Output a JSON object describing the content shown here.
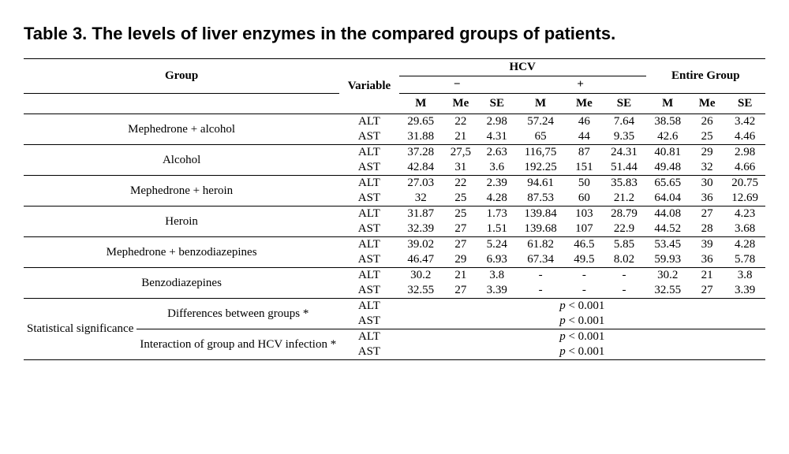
{
  "title": "Table 3. The levels of liver enzymes in the compared groups of patients.",
  "headers": {
    "group": "Group",
    "variable": "Variable",
    "hcv": "HCV",
    "entire": "Entire Group",
    "neg": "−",
    "pos": "+",
    "M": "M",
    "Me": "Me",
    "SE": "SE"
  },
  "groups": [
    {
      "name": "Mephedrone + alcohol",
      "alt": [
        "29.65",
        "22",
        "2.98",
        "57.24",
        "46",
        "7.64",
        "38.58",
        "26",
        "3.42"
      ],
      "ast": [
        "31.88",
        "21",
        "4.31",
        "65",
        "44",
        "9.35",
        "42.6",
        "25",
        "4.46"
      ]
    },
    {
      "name": "Alcohol",
      "alt": [
        "37.28",
        "27,5",
        "2.63",
        "116,75",
        "87",
        "24.31",
        "40.81",
        "29",
        "2.98"
      ],
      "ast": [
        "42.84",
        "31",
        "3.6",
        "192.25",
        "151",
        "51.44",
        "49.48",
        "32",
        "4.66"
      ]
    },
    {
      "name": "Mephedrone + heroin",
      "alt": [
        "27.03",
        "22",
        "2.39",
        "94.61",
        "50",
        "35.83",
        "65.65",
        "30",
        "20.75"
      ],
      "ast": [
        "32",
        "25",
        "4.28",
        "87.53",
        "60",
        "21.2",
        "64.04",
        "36",
        "12.69"
      ]
    },
    {
      "name": "Heroin",
      "alt": [
        "31.87",
        "25",
        "1.73",
        "139.84",
        "103",
        "28.79",
        "44.08",
        "27",
        "4.23"
      ],
      "ast": [
        "32.39",
        "27",
        "1.51",
        "139.68",
        "107",
        "22.9",
        "44.52",
        "28",
        "3.68"
      ]
    },
    {
      "name": "Mephedrone + benzodiazepines",
      "alt": [
        "39.02",
        "27",
        "5.24",
        "61.82",
        "46.5",
        "5.85",
        "53.45",
        "39",
        "4.28"
      ],
      "ast": [
        "46.47",
        "29",
        "6.93",
        "67.34",
        "49.5",
        "8.02",
        "59.93",
        "36",
        "5.78"
      ]
    },
    {
      "name": "Benzodiazepines",
      "alt": [
        "30.2",
        "21",
        "3.8",
        "-",
        "-",
        "-",
        "30.2",
        "21",
        "3.8"
      ],
      "ast": [
        "32.55",
        "27",
        "3.39",
        "-",
        "-",
        "-",
        "32.55",
        "27",
        "3.39"
      ]
    }
  ],
  "varLabels": {
    "alt": "ALT",
    "ast": "AST"
  },
  "stat": {
    "label": "Statistical significance",
    "row1": "Differences between groups *",
    "row2": "Interaction of group and HCV infection *",
    "p": "p < 0.001"
  },
  "style": {
    "background": "#ffffff",
    "text": "#000000",
    "rule": "#000000",
    "title_fontsize": 22,
    "body_fontsize": 15
  }
}
